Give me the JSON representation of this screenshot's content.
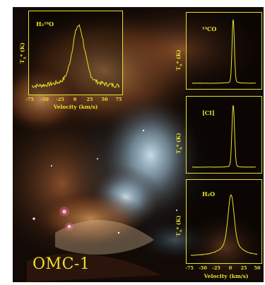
{
  "figure": {
    "object_label": "OMC-1",
    "panels": [
      {
        "id": "h218o",
        "label": "H₂¹⁸O",
        "ylabel": "T",
        "ylabel_sub": "A",
        "ylabel_unit": "* (K)",
        "x_ticks": [
          "-75",
          "-50",
          "-25",
          "0",
          "25",
          "50",
          "75"
        ],
        "xlabel": "Velocity (km/s)"
      },
      {
        "id": "co13",
        "label": "¹³CO",
        "ylabel": "T",
        "ylabel_sub": "A",
        "ylabel_unit": "* (K)"
      },
      {
        "id": "ci",
        "label": "[CI]",
        "ylabel": "T",
        "ylabel_sub": "A",
        "ylabel_unit": "* (K)"
      },
      {
        "id": "h2o",
        "label": "H₂O",
        "ylabel": "T",
        "ylabel_sub": "A",
        "ylabel_unit": "* (K)",
        "x_ticks": [
          "-75",
          "-50",
          "-25",
          "0",
          "25",
          "50"
        ],
        "xlabel": "Velocity (km/s)"
      }
    ],
    "line_color": "#e6e22a"
  }
}
